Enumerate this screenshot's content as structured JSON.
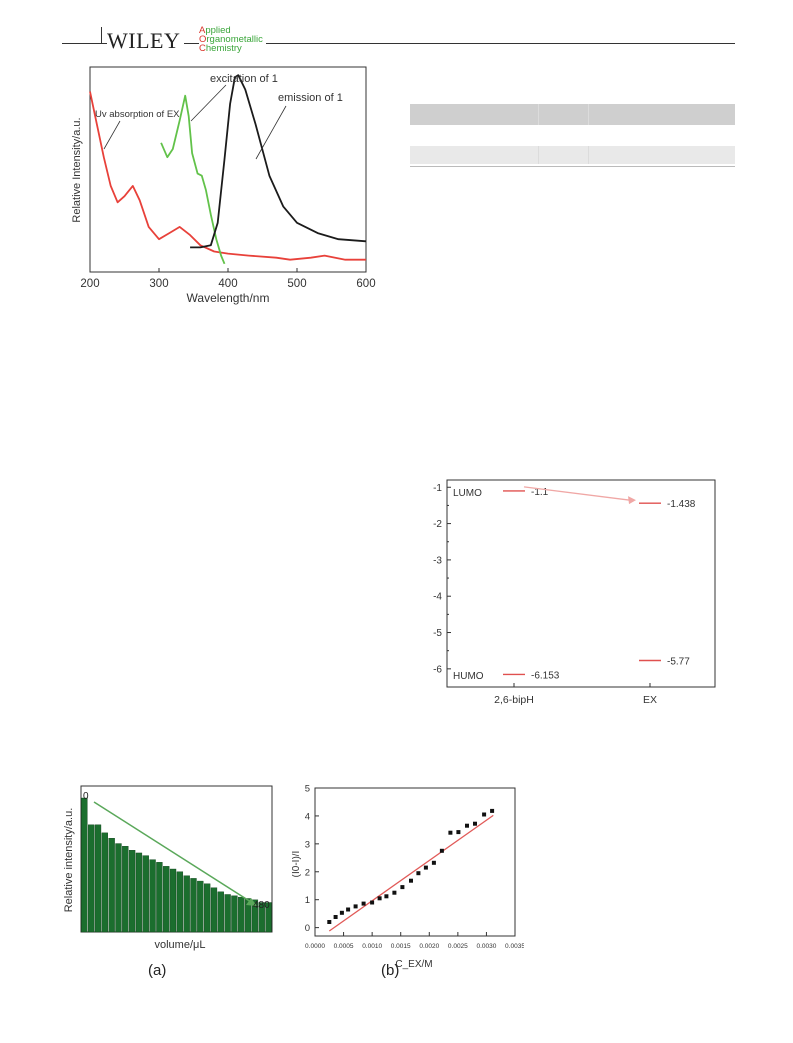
{
  "header": {
    "brand": "WILEY",
    "journal_lines": [
      {
        "cap": "A",
        "rest": "pplied"
      },
      {
        "cap": "O",
        "rest": "rganometallic"
      },
      {
        "cap": "C",
        "rest": "hemistry"
      }
    ]
  },
  "colors": {
    "uv": "#e8413a",
    "excitation": "#62c24a",
    "emission": "#1b1b1b",
    "fit_line": "#e15a58",
    "bar": "#1b6e2e",
    "arrow": "#5aa85a",
    "level": "#e0504f",
    "level_arrow": "#f0a7a5"
  },
  "chart_data": [
    {
      "type": "line",
      "xlabel": "Wavelength/nm",
      "ylabel": "Relative Intensity/a.u.",
      "xlim": [
        200,
        600
      ],
      "x_ticks": [
        200,
        300,
        400,
        500,
        600
      ],
      "annotations": [
        "Uv absorption of EX",
        "excitation of 1",
        "emission of 1"
      ],
      "series": [
        {
          "key": "uv",
          "points": [
            [
              200,
              0.88
            ],
            [
              210,
              0.72
            ],
            [
              220,
              0.56
            ],
            [
              230,
              0.42
            ],
            [
              240,
              0.34
            ],
            [
              250,
              0.37
            ],
            [
              262,
              0.42
            ],
            [
              272,
              0.35
            ],
            [
              285,
              0.22
            ],
            [
              300,
              0.16
            ],
            [
              315,
              0.19
            ],
            [
              330,
              0.22
            ],
            [
              345,
              0.18
            ],
            [
              360,
              0.13
            ],
            [
              380,
              0.1
            ],
            [
              400,
              0.09
            ],
            [
              430,
              0.08
            ],
            [
              470,
              0.07
            ],
            [
              490,
              0.06
            ],
            [
              520,
              0.07
            ],
            [
              540,
              0.08
            ],
            [
              570,
              0.06
            ],
            [
              600,
              0.06
            ]
          ]
        },
        {
          "key": "excitation",
          "points": [
            [
              303,
              0.63
            ],
            [
              312,
              0.56
            ],
            [
              320,
              0.6
            ],
            [
              330,
              0.74
            ],
            [
              338,
              0.86
            ],
            [
              343,
              0.76
            ],
            [
              348,
              0.58
            ],
            [
              356,
              0.48
            ],
            [
              362,
              0.47
            ],
            [
              368,
              0.4
            ],
            [
              375,
              0.28
            ],
            [
              383,
              0.16
            ],
            [
              390,
              0.08
            ],
            [
              395,
              0.04
            ]
          ]
        },
        {
          "key": "emission",
          "points": [
            [
              345,
              0.12
            ],
            [
              360,
              0.12
            ],
            [
              375,
              0.13
            ],
            [
              385,
              0.24
            ],
            [
              395,
              0.55
            ],
            [
              403,
              0.82
            ],
            [
              410,
              0.95
            ],
            [
              415,
              0.96
            ],
            [
              425,
              0.89
            ],
            [
              440,
              0.72
            ],
            [
              460,
              0.47
            ],
            [
              480,
              0.32
            ],
            [
              500,
              0.24
            ],
            [
              530,
              0.19
            ],
            [
              560,
              0.16
            ],
            [
              600,
              0.15
            ]
          ]
        }
      ]
    },
    {
      "type": "line",
      "title": "",
      "ylim": [
        -6.5,
        -0.8
      ],
      "y_ticks": [
        -1,
        -2,
        -3,
        -4,
        -5,
        -6
      ],
      "categories": [
        "2,6-bipH",
        "EX"
      ],
      "level_labels": [
        "LUMO",
        "HUMO"
      ],
      "levels": [
        {
          "category": "2,6-bipH",
          "value": -1.1,
          "label": "-1.1"
        },
        {
          "category": "EX",
          "value": -1.438,
          "label": "-1.438"
        },
        {
          "category": "2,6-bipH",
          "value": -6.153,
          "label": "-6.153"
        },
        {
          "category": "EX",
          "value": -5.77,
          "label": "-5.77"
        }
      ]
    },
    {
      "type": "bar",
      "panel": "(a)",
      "xlabel": "volume/μL",
      "ylabel": "Relative intensity/a.u.",
      "annotations": [
        "0",
        "480"
      ],
      "values": [
        1.0,
        0.8,
        0.8,
        0.74,
        0.7,
        0.66,
        0.64,
        0.61,
        0.59,
        0.57,
        0.54,
        0.52,
        0.49,
        0.47,
        0.45,
        0.42,
        0.4,
        0.38,
        0.36,
        0.33,
        0.3,
        0.28,
        0.27,
        0.26,
        0.25,
        0.24,
        0.22,
        0.22
      ]
    },
    {
      "type": "scatter",
      "panel": "(b)",
      "xlabel": "C_EX/M",
      "ylabel": "(I0-I)/I",
      "xlim": [
        0,
        0.0035
      ],
      "ylim": [
        -0.3,
        5
      ],
      "x_ticks": [
        "0.0000",
        "0.0005",
        "0.0010",
        "0.0015",
        "0.0020",
        "0.0025",
        "0.0030",
        "0.0035"
      ],
      "y_ticks": [
        0,
        1,
        2,
        3,
        4,
        5
      ],
      "points": [
        [
          0.00025,
          0.2
        ],
        [
          0.00036,
          0.38
        ],
        [
          0.00047,
          0.53
        ],
        [
          0.00058,
          0.65
        ],
        [
          0.00071,
          0.76
        ],
        [
          0.00085,
          0.86
        ],
        [
          0.001,
          0.9
        ],
        [
          0.00113,
          1.05
        ],
        [
          0.00125,
          1.12
        ],
        [
          0.00139,
          1.25
        ],
        [
          0.00153,
          1.45
        ],
        [
          0.00168,
          1.68
        ],
        [
          0.00181,
          1.95
        ],
        [
          0.00194,
          2.15
        ],
        [
          0.00208,
          2.32
        ],
        [
          0.00222,
          2.75
        ],
        [
          0.00237,
          3.4
        ],
        [
          0.00251,
          3.42
        ],
        [
          0.00266,
          3.65
        ],
        [
          0.0028,
          3.72
        ],
        [
          0.00296,
          4.05
        ],
        [
          0.0031,
          4.18
        ]
      ],
      "fit_line": [
        [
          0.00025,
          -0.12
        ],
        [
          0.00312,
          4.02
        ]
      ]
    }
  ]
}
